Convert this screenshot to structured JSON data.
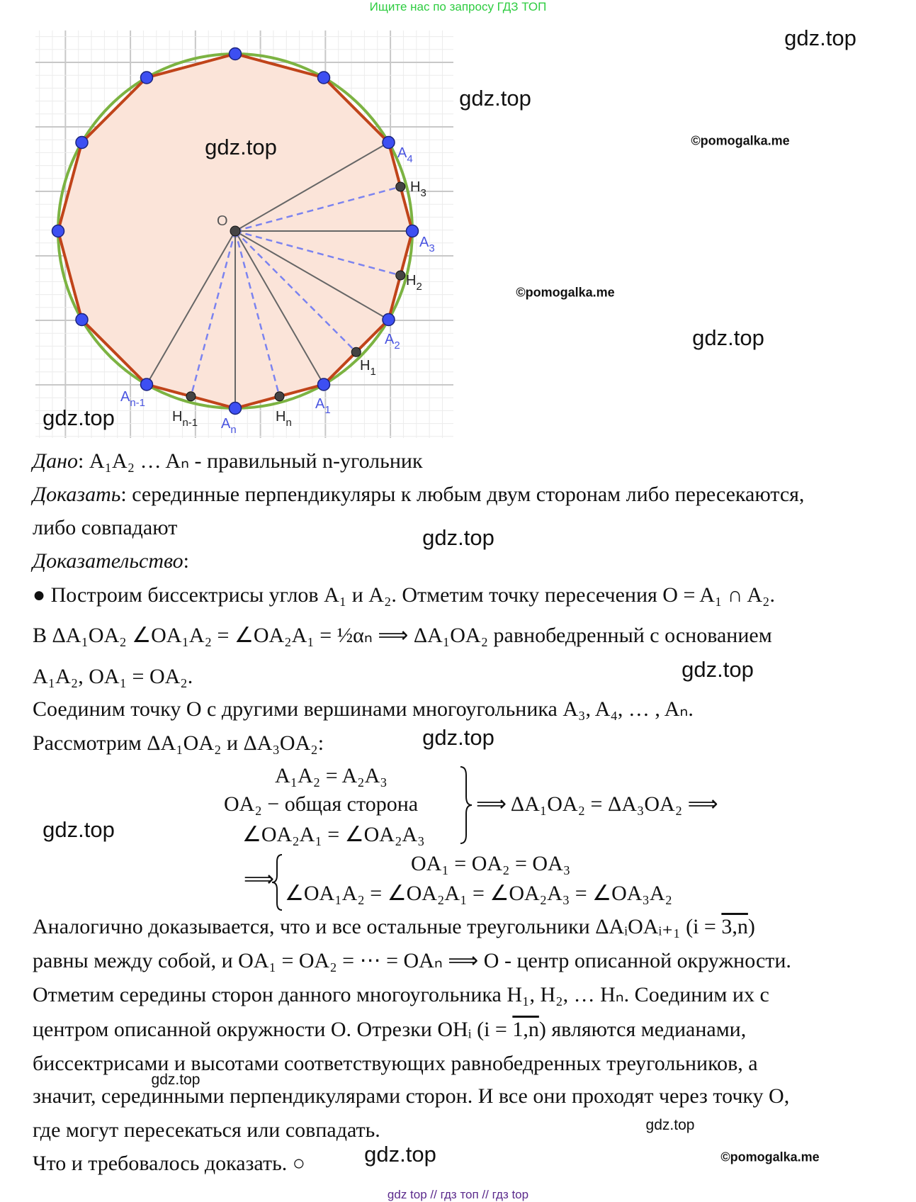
{
  "header": "Ищите нас по запросу ГДЗ ТОП",
  "footer": "gdz top  //  гдз топ  //  гдз top",
  "watermarks": {
    "gdz": "gdz.top",
    "pomogalka": "©pomogalka.me"
  },
  "figure": {
    "colors": {
      "circle": "#7cb342",
      "polygon": "#c0441a",
      "fill": "#fbe4d9",
      "vertex": "#3d4ff2",
      "midpoint": "#444444",
      "dashed": "#7b83f0"
    },
    "labels": {
      "O": "O",
      "A4": {
        "m": "A",
        "s": "4"
      },
      "A3": {
        "m": "A",
        "s": "3"
      },
      "A2": {
        "m": "A",
        "s": "2"
      },
      "A1": {
        "m": "A",
        "s": "1"
      },
      "An": {
        "m": "A",
        "s": "n"
      },
      "An1": {
        "m": "A",
        "s": "n-1"
      },
      "H3": {
        "m": "H",
        "s": "3"
      },
      "H2": {
        "m": "H",
        "s": "2"
      },
      "H1": {
        "m": "H",
        "s": "1"
      },
      "Hn": {
        "m": "H",
        "s": "n"
      },
      "Hn1": {
        "m": "H",
        "s": "n-1"
      }
    }
  },
  "text": {
    "given_label": "Дано",
    "given": ": A₁A₂ … Aₙ - правильный n-угольник",
    "prove_label": "Доказать",
    "prove": ": серединные перпендикуляры к любым двум сторонам либо пересекаются,",
    "prove2": "либо совпадают",
    "proof_label": "Доказательство",
    "proof_colon": ":",
    "l5": "● Построим биссектрисы углов A₁ и A₂. Отметим точку пересечения O = A₁ ∩ A₂.",
    "l6": "В ΔA₁OA₂ ∠OA₁A₂ = ∠OA₂A₁ = ½αₙ  ⟹ ΔA₁OA₂ равнобедренный с основанием",
    "l7": "A₁A₂, OA₁ = OA₂.",
    "l8": "Соединим точку O с другими вершинами многоугольника A₃, A₄, … , Aₙ.",
    "l9": "Рассмотрим ΔA₁OA₂ и ΔA₃OA₂:",
    "sys1": [
      "A₁A₂ = A₂A₃",
      "OA₂ − общая сторона",
      "∠OA₂A₁ = ∠OA₂A₃"
    ],
    "sys1_result": "⟹ ΔA₁OA₂ = ΔA₃OA₂ ⟹",
    "sys2_arrow": "⟹",
    "sys2": [
      "OA₁ = OA₂ = OA₃",
      "∠OA₁A₂ = ∠OA₂A₁ = ∠OA₂A₃ = ∠OA₃A₂"
    ],
    "l10a": "Аналогично доказывается, что и все остальные треугольники ΔAᵢOAᵢ₊₁ (i = ",
    "l10b": "3,n",
    "l10c": ")",
    "l11": "равны между собой, и OA₁ = OA₂ = ⋯ = OAₙ ⟹ O - центр описанной окружности.",
    "l12": "Отметим середины сторон данного многоугольника H₁, H₂, … Hₙ. Соединим их с",
    "l13a": "центром описанной окружности O. Отрезки OHᵢ (i = ",
    "l13b": "1,n",
    "l13c": ") являются медианами,",
    "l14": "биссектрисами и высотами соответствующих равнобедренных треугольников, а",
    "l15": "значит, серединными перпендикулярами сторон. И все они проходят через точку O,",
    "l16": "где могут пересекаться или совпадать.",
    "l17": "Что и требовалось доказать. ○"
  }
}
